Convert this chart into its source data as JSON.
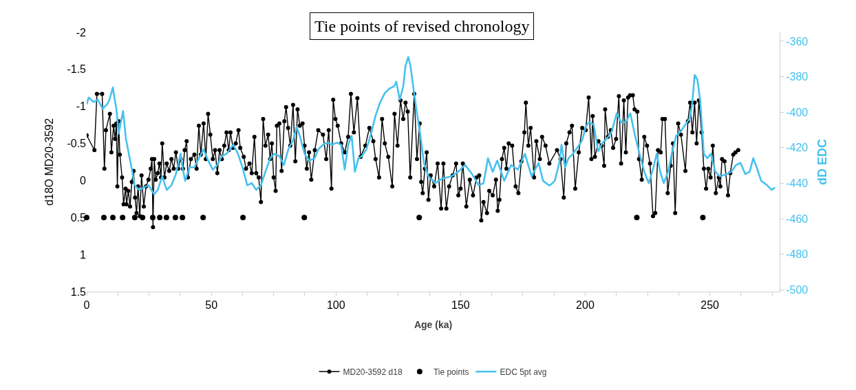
{
  "chart_data": {
    "type": "line",
    "title": "Tie points of revised chronology",
    "xlabel": "Age (ka)",
    "ylabel": "d18O MD20-3592",
    "y2label": "dD EDC",
    "xlim": [
      0,
      278
    ],
    "xticks": [
      0,
      {
        "value": 12.5,
        "label": null
      },
      {
        "value": 25,
        "label": null
      },
      {
        "value": 37.5,
        "label": null
      },
      50,
      {
        "value": 62.5,
        "label": null
      },
      {
        "value": 75,
        "label": null
      },
      {
        "value": 87.5,
        "label": null
      },
      100,
      {
        "value": 112.5,
        "label": null
      },
      {
        "value": 125,
        "label": null
      },
      {
        "value": 137.5,
        "label": null
      },
      150,
      {
        "value": 162.5,
        "label": null
      },
      {
        "value": 175,
        "label": null
      },
      {
        "value": 187.5,
        "label": null
      },
      200,
      {
        "value": 212.5,
        "label": null
      },
      {
        "value": 225,
        "label": null
      },
      {
        "value": 237.5,
        "label": null
      },
      250,
      {
        "value": 262.5,
        "label": null
      },
      {
        "value": 275,
        "label": null
      }
    ],
    "ylim": [
      1.5,
      -2
    ],
    "yticks": [
      -2,
      -1.5,
      -1,
      -0.5,
      0,
      0.5,
      1,
      1.5
    ],
    "y2lim": [
      -501,
      -355
    ],
    "y2ticks": [
      -360,
      -380,
      -400,
      -420,
      -440,
      -460,
      -480,
      -500
    ],
    "legend": "bottom",
    "series": [
      {
        "name": "MD20-3592 d18",
        "marker": "circle",
        "color": "#000000",
        "x": [
          0,
          3.1,
          4.1,
          6.2,
          7.1,
          7.7,
          9.3,
          9.9,
          10.8,
          11.4,
          11.9,
          12.3,
          12.8,
          13.3,
          14.2,
          14.8,
          15.6,
          16.0,
          16.7,
          17.4,
          18.1,
          18.8,
          19.4,
          20.0,
          20.6,
          21.3,
          22.0,
          22.9,
          23.8,
          24.8,
          25.7,
          26.2,
          26.6,
          27.1,
          27.7,
          28.5,
          29.2,
          29.8,
          30.3,
          31.2,
          32.1,
          33.1,
          34.0,
          34.9,
          35.8,
          36.7,
          37.7,
          38.6,
          39.3,
          40.1,
          40.6,
          41.8,
          43.2,
          44.1,
          45.0,
          45.8,
          46.9,
          47.8,
          48.7,
          49.6,
          50.6,
          51.5,
          52.4,
          53.3,
          54.2,
          55.2,
          56.1,
          57.0,
          57.7,
          58.7,
          59.8,
          60.9,
          61.6,
          63.0,
          63.9,
          65.3,
          66.2,
          67.3,
          68.0,
          69.0,
          69.9,
          70.8,
          71.7,
          72.8,
          73.6,
          74.3,
          75.0,
          75.8,
          76.3,
          77.3,
          78.2,
          79.3,
          80.0,
          80.8,
          81.7,
          82.8,
          83.7,
          84.6,
          85.5,
          86.6,
          87.4,
          88.3,
          89.2,
          90.1,
          91.5,
          92.9,
          94.8,
          96.1,
          97.1,
          98.2,
          98.9,
          99.8,
          100.7,
          102.1,
          103.5,
          104.9,
          106.0,
          107.2,
          108.6,
          109.9,
          111.8,
          113.4,
          115.0,
          115.9,
          117.3,
          118.5,
          119.6,
          121.0,
          122.6,
          123.5,
          124.7,
          125.9,
          127.0,
          127.9,
          128.8,
          129.8,
          131.4,
          132.5,
          133.6,
          134.2,
          134.8,
          135.7,
          136.4,
          137.1,
          138.0,
          139.4,
          140.8,
          142.2,
          143.1,
          144.3,
          145.4,
          146.8,
          148.2,
          149.1,
          150.0,
          150.9,
          152.3,
          153.7,
          155.0,
          156.4,
          157.5,
          158.3,
          159.2,
          160.6,
          161.5,
          162.9,
          164.2,
          164.9,
          165.6,
          166.6,
          167.5,
          168.4,
          169.3,
          170.7,
          172.1,
          173.2,
          174.4,
          175.6,
          176.2,
          177.2,
          178.1,
          179.5,
          180.4,
          181.8,
          182.7,
          184.1,
          185.6,
          188.7,
          190.1,
          191.4,
          192.4,
          193.7,
          194.7,
          196.0,
          197.4,
          198.8,
          200.2,
          201.4,
          202.5,
          203.0,
          203.9,
          205.3,
          206.6,
          207.6,
          208.0,
          209.1,
          210.3,
          211.2,
          212.4,
          213.5,
          214.4,
          215.5,
          216.3,
          217.2,
          218.0,
          219.1,
          219.8,
          220.9,
          221.6,
          222.7,
          223.7,
          224.8,
          226.0,
          227.2,
          228.1,
          229.2,
          230.3,
          231.0,
          232.0,
          233.1,
          234.3,
          235.2,
          236.1,
          237.3,
          238.4,
          240.2,
          241.2,
          242.1,
          243.0,
          243.9,
          244.7,
          245.6,
          246.7,
          247.6,
          248.5,
          249.4,
          250.3,
          251.2,
          252.4,
          253.6,
          254.2,
          254.9,
          255.9,
          257.3,
          258.2,
          259.4,
          260.3,
          261.4
        ],
        "values": [
          -0.61,
          -0.41,
          -1.17,
          -1.17,
          -0.16,
          -0.68,
          -0.9,
          -0.38,
          -0.74,
          -0.56,
          -0.77,
          0.08,
          -0.8,
          -0.35,
          -0.04,
          0.32,
          0.11,
          0.32,
          0.14,
          0.35,
          0.02,
          -0.13,
          0.23,
          0.44,
          0.08,
          0.48,
          -0.07,
          0.35,
          0.08,
          -0.01,
          -0.16,
          -0.29,
          0.63,
          -0.29,
          -0.01,
          -0.1,
          -0.23,
          -0.04,
          -0.5,
          -0.04,
          -0.23,
          -0.13,
          -0.29,
          -0.16,
          -0.38,
          -0.16,
          -0.29,
          -0.16,
          -0.41,
          -0.53,
          -0.04,
          -0.29,
          -0.35,
          -0.16,
          -0.74,
          -0.35,
          -0.77,
          -0.29,
          -0.9,
          -0.62,
          -0.29,
          -0.41,
          -0.1,
          -0.41,
          -0.29,
          -0.47,
          -0.65,
          -0.41,
          -0.65,
          -0.44,
          -0.5,
          -0.68,
          -0.44,
          -0.32,
          -0.16,
          -0.23,
          -0.1,
          -0.59,
          -0.1,
          -0.04,
          0.29,
          -0.83,
          -0.47,
          -0.62,
          -0.29,
          -0.5,
          -0.04,
          0.14,
          -0.74,
          -0.77,
          -0.13,
          -0.8,
          -0.99,
          -0.71,
          -0.47,
          -1.02,
          -0.26,
          -0.96,
          -0.74,
          -0.77,
          -0.47,
          -0.16,
          -0.38,
          -0.01,
          -0.41,
          -0.68,
          -0.62,
          -0.29,
          -0.68,
          0.11,
          -1.09,
          -0.83,
          -0.74,
          -0.5,
          -0.38,
          -0.59,
          -1.17,
          -0.65,
          -1.11,
          -0.32,
          -0.47,
          -0.71,
          -0.53,
          -0.29,
          -0.04,
          -0.83,
          -0.5,
          -0.32,
          0.08,
          -0.9,
          -0.47,
          -1.08,
          -0.83,
          -1.05,
          -0.93,
          -0.04,
          -1.17,
          -0.29,
          -0.77,
          0.02,
          0.17,
          -0.16,
          -0.38,
          0.26,
          -0.07,
          0.08,
          -0.23,
          0.38,
          -0.23,
          0.38,
          0.08,
          -0.07,
          -0.23,
          0.2,
          0.11,
          -0.23,
          0.35,
          -0.01,
          0.2,
          -0.04,
          -0.07,
          0.54,
          0.29,
          0.44,
          0.14,
          0.2,
          -0.01,
          0.41,
          0.26,
          -0.29,
          -0.44,
          -0.16,
          -0.5,
          -0.47,
          0.08,
          0.17,
          -0.26,
          -0.65,
          -1.05,
          -0.47,
          -0.71,
          -0.04,
          -0.53,
          -0.29,
          -0.59,
          -0.47,
          -0.23,
          -0.41,
          -0.29,
          0.23,
          -0.5,
          -0.65,
          -0.74,
          0.11,
          -0.38,
          -0.71,
          -0.68,
          -1.12,
          -0.29,
          -0.87,
          -0.32,
          -0.53,
          -0.47,
          -0.2,
          -0.96,
          -0.59,
          -0.68,
          -0.44,
          -0.56,
          -1.14,
          -0.23,
          -1.08,
          -0.38,
          -1.12,
          -1.15,
          -1.15,
          -0.96,
          -0.93,
          -0.29,
          -0.01,
          -0.59,
          -0.47,
          -0.23,
          0.48,
          0.44,
          -0.41,
          -0.38,
          -0.83,
          -0.83,
          0.17,
          -0.2,
          -0.5,
          0.44,
          -0.77,
          -0.62,
          -0.13,
          -0.8,
          -1.05,
          -0.65,
          -1.05,
          -0.5,
          -1.08,
          -0.65,
          -0.16,
          0.11,
          -0.16,
          -0.04,
          -0.47,
          0.17,
          -0.04,
          0.08,
          -0.29,
          -0.26,
          0.2,
          -0.1,
          -0.35,
          -0.38,
          -0.41
        ]
      },
      {
        "name": "Tie points",
        "type": "scatter",
        "marker": "circle",
        "color": "#000000",
        "x": [
          0,
          6.9,
          10.5,
          14.4,
          19.3,
          22.4,
          26.5,
          29.3,
          32.0,
          35.6,
          38.4,
          46.7,
          62.7,
          87.3,
          133.4,
          220.7,
          247.2
        ],
        "values": [
          0.5,
          0.5,
          0.5,
          0.5,
          0.5,
          0.5,
          0.5,
          0.5,
          0.5,
          0.5,
          0.5,
          0.5,
          0.5,
          0.5,
          0.5,
          0.5,
          0.5
        ]
      },
      {
        "name": "EDC 5pt avg",
        "axis": "y2",
        "color": "#45c1ef",
        "x": [
          0,
          0.8,
          2.7,
          4.5,
          6.4,
          8.2,
          9.1,
          10.5,
          11.1,
          11.9,
          12.8,
          14.6,
          15.7,
          16.9,
          18.3,
          19.2,
          21.1,
          22.9,
          24.8,
          27.1,
          28.5,
          30.3,
          32.1,
          34.0,
          35.8,
          37.7,
          38.6,
          39.5,
          41.3,
          43.2,
          45.0,
          46.9,
          48.7,
          50.6,
          52.4,
          54.2,
          56.1,
          58.8,
          60.7,
          62.5,
          64.4,
          66.2,
          68.0,
          69.9,
          71.7,
          73.6,
          75.4,
          77.3,
          79.1,
          80.9,
          82.8,
          84.2,
          85.5,
          87.4,
          89.2,
          91.5,
          92.9,
          94.8,
          96.6,
          98.4,
          100.3,
          102.1,
          103.5,
          104.9,
          106.3,
          107.6,
          109.0,
          110.4,
          112.2,
          114.1,
          115.9,
          117.8,
          119.6,
          121.5,
          123.3,
          124.2,
          125.6,
          127.0,
          127.9,
          129.0,
          129.9,
          131.1,
          132.5,
          133.9,
          135.3,
          137.1,
          139.9,
          142.6,
          146.3,
          149.0,
          151.8,
          154.6,
          157.3,
          159.2,
          161.0,
          162.9,
          164.7,
          167.5,
          170.3,
          173.0,
          175.8,
          178.5,
          181.3,
          183.1,
          185.4,
          185.9,
          187.8,
          189.6,
          190.5,
          191.9,
          193.3,
          195.1,
          197.0,
          198.8,
          200.2,
          201.5,
          203.4,
          205.2,
          207.0,
          208.9,
          210.7,
          212.6,
          214.4,
          216.3,
          218.1,
          220.0,
          221.8,
          223.7,
          225.5,
          227.4,
          228.7,
          230.1,
          231.5,
          233.3,
          234.7,
          236.5,
          238.4,
          240.2,
          242.1,
          243.0,
          243.9,
          245.0,
          246.2,
          247.6,
          249.0,
          250.4,
          252.2,
          254.0,
          256.8,
          258.6,
          260.5,
          262.3,
          264.2,
          266.0,
          267.4,
          268.8,
          270.6,
          273.0,
          274.8,
          276.2
        ],
        "values": [
          -395.5,
          -391.7,
          -394.2,
          -393.0,
          -398.0,
          -395.5,
          -393.0,
          -386.0,
          -391.7,
          -398.0,
          -412.0,
          -399.3,
          -414.5,
          -423.4,
          -433.5,
          -441.1,
          -443.7,
          -442.4,
          -441.1,
          -446.2,
          -443.7,
          -436.1,
          -443.7,
          -441.1,
          -434.8,
          -423.4,
          -432.3,
          -438.6,
          -431.0,
          -431.0,
          -425.9,
          -420.9,
          -427.2,
          -432.3,
          -429.7,
          -424.7,
          -423.4,
          -418.3,
          -423.4,
          -431.0,
          -441.1,
          -439.9,
          -443.7,
          -441.1,
          -433.5,
          -425.9,
          -423.4,
          -424.7,
          -429.7,
          -420.9,
          -415.8,
          -408.2,
          -413.3,
          -423.4,
          -427.2,
          -425.9,
          -420.9,
          -418.3,
          -417.1,
          -418.3,
          -417.1,
          -418.3,
          -432.3,
          -418.3,
          -413.3,
          -433.5,
          -425.9,
          -424.7,
          -420.9,
          -412.0,
          -401.8,
          -394.2,
          -389.2,
          -386.6,
          -385.4,
          -382.8,
          -393.0,
          -385.4,
          -373.9,
          -368.9,
          -373.9,
          -386.6,
          -400.6,
          -413.3,
          -428.5,
          -436.1,
          -439.9,
          -437.3,
          -436.1,
          -433.5,
          -429.7,
          -434.8,
          -441.1,
          -439.9,
          -425.9,
          -433.5,
          -427.2,
          -438.6,
          -429.7,
          -432.3,
          -423.4,
          -436.1,
          -428.5,
          -438.6,
          -441.1,
          -441.1,
          -438.6,
          -428.5,
          -418.3,
          -431.0,
          -425.9,
          -423.4,
          -419.6,
          -415.8,
          -408.2,
          -405.6,
          -406.9,
          -422.1,
          -417.1,
          -414.5,
          -410.7,
          -400.6,
          -405.6,
          -405.6,
          -400.6,
          -413.3,
          -423.4,
          -433.5,
          -439.9,
          -431.0,
          -423.4,
          -433.5,
          -439.9,
          -433.5,
          -423.4,
          -413.3,
          -410.7,
          -406.9,
          -403.1,
          -394.2,
          -379.0,
          -381.6,
          -394.2,
          -423.4,
          -425.9,
          -423.4,
          -433.5,
          -436.1,
          -434.8,
          -433.5,
          -429.7,
          -428.5,
          -434.8,
          -433.5,
          -425.9,
          -431.0,
          -438.6,
          -441.1,
          -443.7,
          -442.4
        ]
      }
    ]
  }
}
